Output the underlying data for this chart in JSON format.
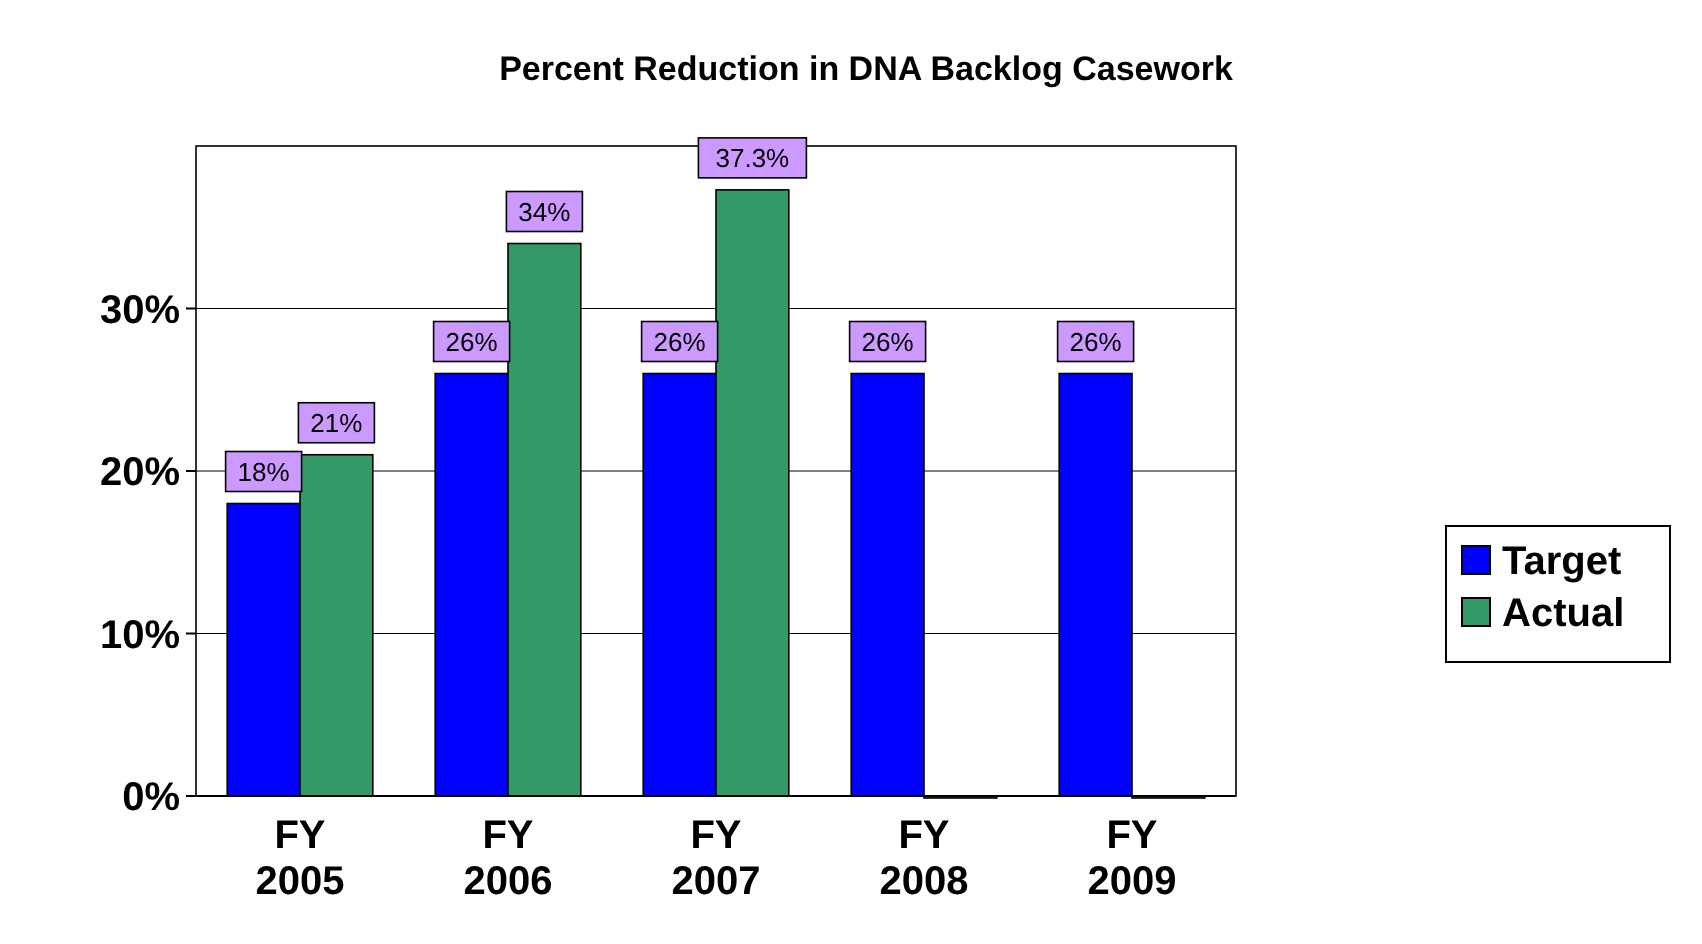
{
  "chart_data": {
    "type": "bar",
    "title": "Percent Reduction in DNA Backlog Casework",
    "categories": [
      "FY 2005",
      "FY 2006",
      "FY 2007",
      "FY 2008",
      "FY 2009"
    ],
    "series": [
      {
        "name": "Target",
        "color": "#0000ff",
        "values": [
          18,
          26,
          26,
          26,
          26
        ],
        "value_labels": [
          "18%",
          "26%",
          "26%",
          "26%",
          "26%"
        ]
      },
      {
        "name": "Actual",
        "color": "#339966",
        "values": [
          21,
          34,
          37.3,
          0,
          0
        ],
        "value_labels": [
          "21%",
          "34%",
          "37.3%",
          null,
          null
        ]
      }
    ],
    "ylim": [
      0,
      40
    ],
    "yticks": [
      {
        "value": 0,
        "label": "0%"
      },
      {
        "value": 10,
        "label": "10%"
      },
      {
        "value": 20,
        "label": "20%"
      },
      {
        "value": 30,
        "label": "30%"
      }
    ],
    "grid": "y",
    "legend": "right"
  }
}
